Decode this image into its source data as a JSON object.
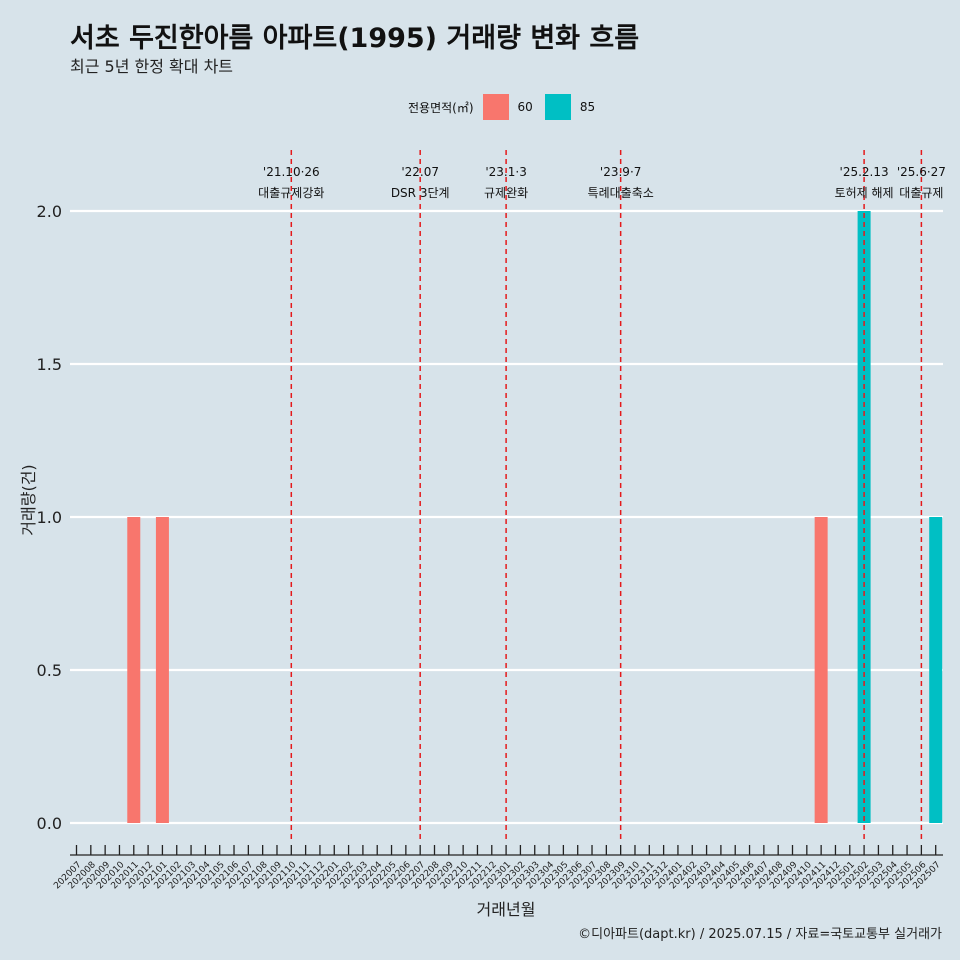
{
  "title": "서초 두진한아름 아파트(1995) 거래량 변화 흐름",
  "subtitle": "최근 5년 한정 확대 차트",
  "caption": "©디아파트(dapt.kr) / 2025.07.15 / 자료=국토교통부 실거래가",
  "legend": {
    "title": "전용면적(㎡)",
    "items": [
      {
        "label": "60",
        "color": "#f8766d"
      },
      {
        "label": "85",
        "color": "#00bfc4"
      }
    ]
  },
  "colors": {
    "background": "#d7e3ea",
    "grid": "#ffffff",
    "event_line": "#e41a1c"
  },
  "chart_data": {
    "type": "bar",
    "xlabel": "거래년월",
    "ylabel": "거래량(건)",
    "ylim": [
      0,
      2
    ],
    "yticks": [
      "0.0",
      "0.5",
      "1.0",
      "1.5",
      "2.0"
    ],
    "grid": true,
    "legend_position": "top",
    "categories": [
      "202007",
      "202008",
      "202009",
      "202010",
      "202011",
      "202012",
      "202101",
      "202102",
      "202103",
      "202104",
      "202105",
      "202106",
      "202107",
      "202108",
      "202109",
      "202110",
      "202111",
      "202112",
      "202201",
      "202202",
      "202203",
      "202204",
      "202205",
      "202206",
      "202207",
      "202208",
      "202209",
      "202210",
      "202211",
      "202212",
      "202301",
      "202302",
      "202303",
      "202304",
      "202305",
      "202306",
      "202307",
      "202308",
      "202309",
      "202310",
      "202311",
      "202312",
      "202401",
      "202402",
      "202403",
      "202404",
      "202405",
      "202406",
      "202407",
      "202408",
      "202409",
      "202410",
      "202411",
      "202412",
      "202501",
      "202502",
      "202503",
      "202504",
      "202505",
      "202506",
      "202507"
    ],
    "series": [
      {
        "name": "60",
        "color": "#f8766d",
        "points": [
          {
            "x": "202011",
            "y": 1
          },
          {
            "x": "202101",
            "y": 1
          },
          {
            "x": "202411",
            "y": 1
          }
        ]
      },
      {
        "name": "85",
        "color": "#00bfc4",
        "points": [
          {
            "x": "202502",
            "y": 2
          },
          {
            "x": "202507",
            "y": 1
          }
        ]
      }
    ],
    "events": [
      {
        "date": "'21.10·26",
        "label": "대출규제강화",
        "x": "202110"
      },
      {
        "date": "'22.07",
        "label": "DSR 3단계",
        "x": "202207"
      },
      {
        "date": "'23.1·3",
        "label": "규제완화",
        "x": "202301"
      },
      {
        "date": "'23.9·7",
        "label": "특례대출축소",
        "x": "202309"
      },
      {
        "date": "'25.2.13",
        "label": "토허제 해제",
        "x": "202502"
      },
      {
        "date": "'25.6·27",
        "label": "대출규제",
        "x": "202506"
      }
    ]
  }
}
